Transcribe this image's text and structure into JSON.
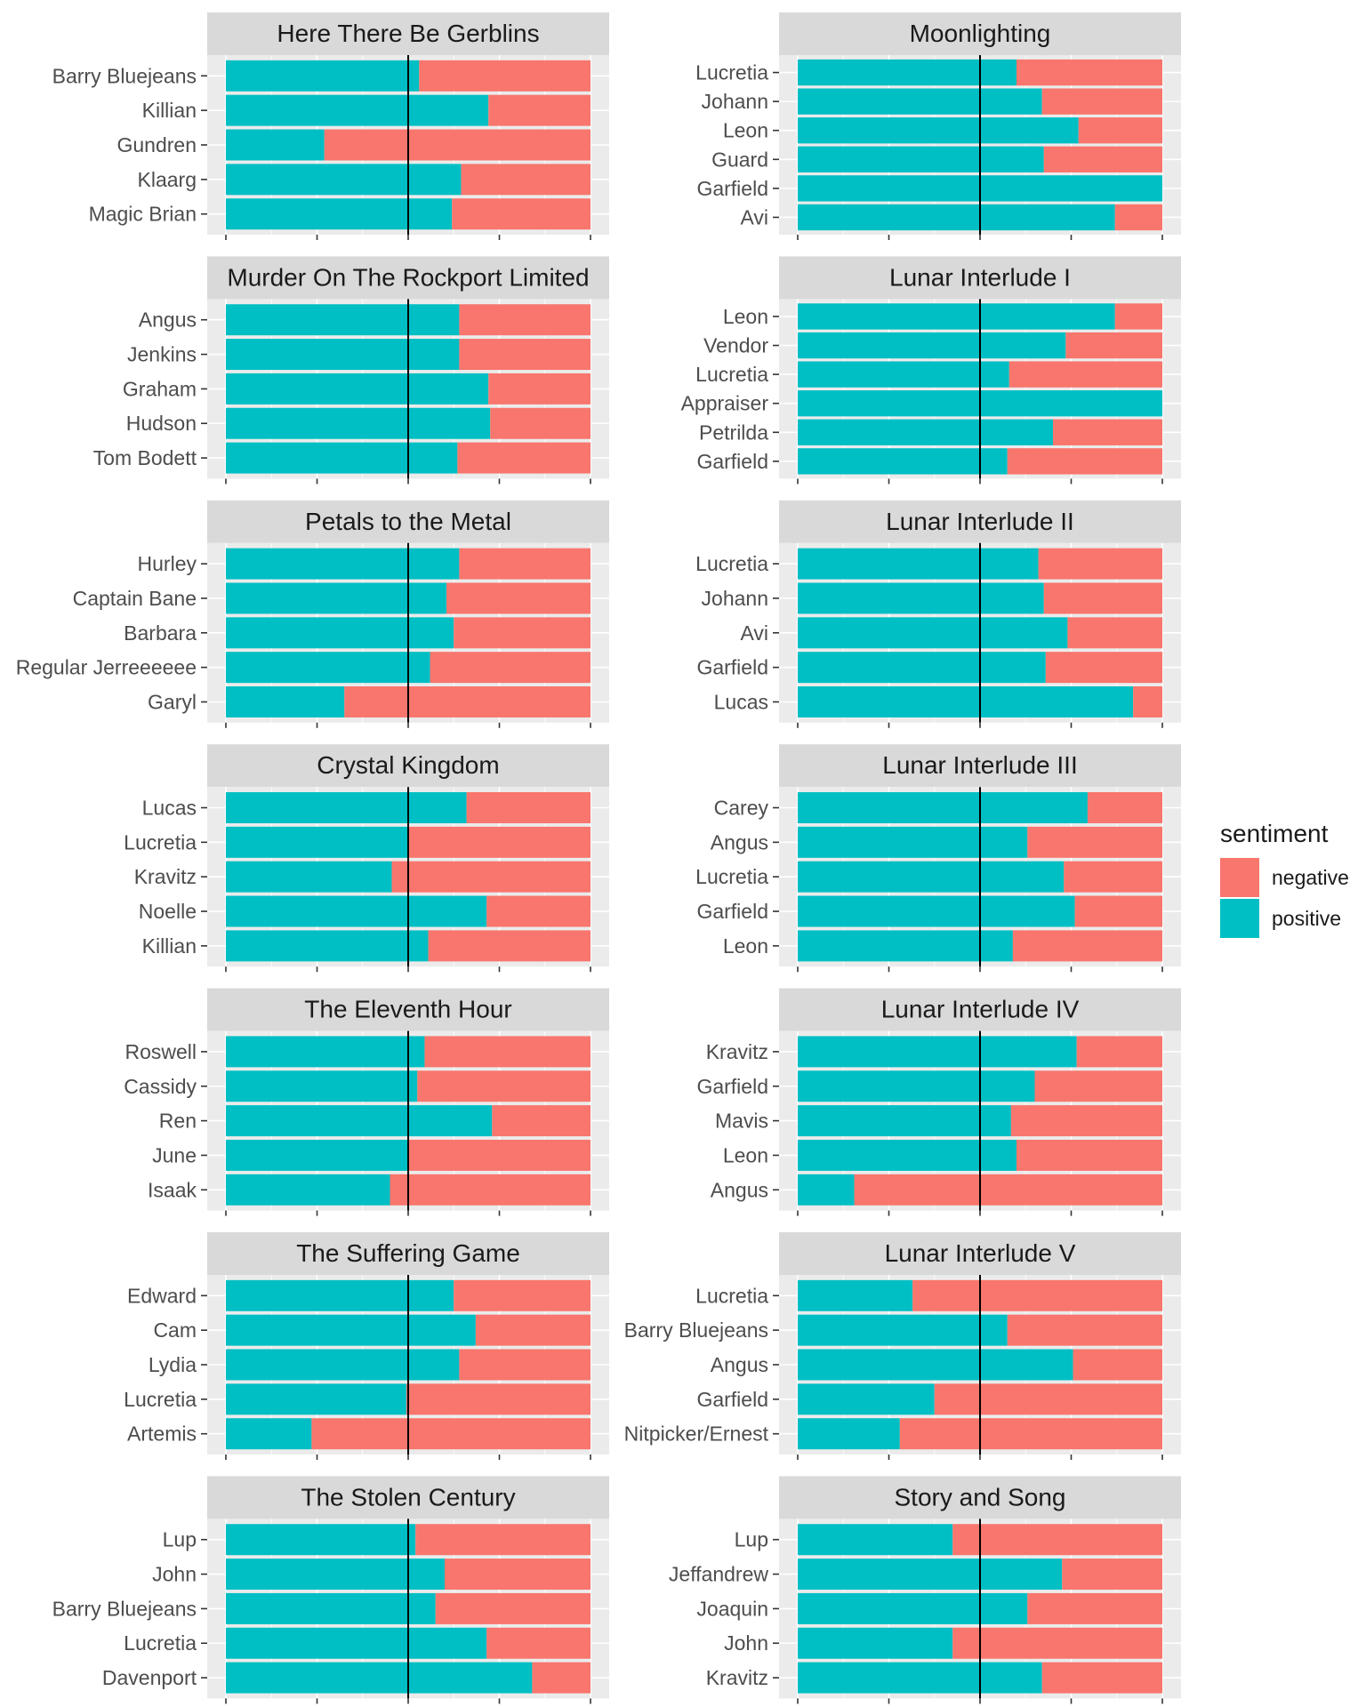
{
  "colors": {
    "negative": "#F8766D",
    "positive": "#00BFC4",
    "panel_bg": "#EBEBEB",
    "strip_bg": "#D9D9D9",
    "grid": "#FFFFFF",
    "reference_line": "#000000"
  },
  "chart_data": {
    "type": "bar",
    "orientation": "horizontal",
    "stacked": "fill",
    "xlim": [
      0,
      1
    ],
    "reference_line": 0.5,
    "legend": {
      "title": "sentiment",
      "position": "right",
      "entries": [
        {
          "key": "negative",
          "label": "negative"
        },
        {
          "key": "positive",
          "label": "positive"
        }
      ]
    },
    "panels": [
      {
        "title": "Here There Be Gerblins",
        "characters": [
          {
            "name": "Barry Bluejeans",
            "positive": 0.53
          },
          {
            "name": "Killian",
            "positive": 0.72
          },
          {
            "name": "Gundren",
            "positive": 0.27
          },
          {
            "name": "Klaarg",
            "positive": 0.645
          },
          {
            "name": "Magic Brian",
            "positive": 0.62
          }
        ]
      },
      {
        "title": "Moonlighting",
        "characters": [
          {
            "name": "Lucretia",
            "positive": 0.6
          },
          {
            "name": "Johann",
            "positive": 0.67
          },
          {
            "name": "Leon",
            "positive": 0.77
          },
          {
            "name": "Guard",
            "positive": 0.675
          },
          {
            "name": "Garfield",
            "positive": 1.0
          },
          {
            "name": "Avi",
            "positive": 0.87
          }
        ]
      },
      {
        "title": "Murder On The Rockport Limited",
        "characters": [
          {
            "name": "Angus",
            "positive": 0.64
          },
          {
            "name": "Jenkins",
            "positive": 0.64
          },
          {
            "name": "Graham",
            "positive": 0.72
          },
          {
            "name": "Hudson",
            "positive": 0.725
          },
          {
            "name": "Tom Bodett",
            "positive": 0.635
          }
        ]
      },
      {
        "title": "Lunar Interlude I",
        "characters": [
          {
            "name": "Leon",
            "positive": 0.87
          },
          {
            "name": "Vendor",
            "positive": 0.735
          },
          {
            "name": "Lucretia",
            "positive": 0.58
          },
          {
            "name": "Appraiser",
            "positive": 1.0
          },
          {
            "name": "Petrilda",
            "positive": 0.7
          },
          {
            "name": "Garfield",
            "positive": 0.575
          }
        ]
      },
      {
        "title": "Petals to the Metal",
        "characters": [
          {
            "name": "Hurley",
            "positive": 0.64
          },
          {
            "name": "Captain Bane",
            "positive": 0.605
          },
          {
            "name": "Barbara",
            "positive": 0.625
          },
          {
            "name": "Regular Jerreeeeee",
            "positive": 0.56
          },
          {
            "name": "Garyl",
            "positive": 0.325
          }
        ]
      },
      {
        "title": "Lunar Interlude II",
        "characters": [
          {
            "name": "Lucretia",
            "positive": 0.66
          },
          {
            "name": "Johann",
            "positive": 0.675
          },
          {
            "name": "Avi",
            "positive": 0.74
          },
          {
            "name": "Garfield",
            "positive": 0.68
          },
          {
            "name": "Lucas",
            "positive": 0.92
          }
        ]
      },
      {
        "title": "Crystal Kingdom",
        "characters": [
          {
            "name": "Lucas",
            "positive": 0.66
          },
          {
            "name": "Lucretia",
            "positive": 0.5
          },
          {
            "name": "Kravitz",
            "positive": 0.455
          },
          {
            "name": "Noelle",
            "positive": 0.715
          },
          {
            "name": "Killian",
            "positive": 0.555
          }
        ]
      },
      {
        "title": "Lunar Interlude III",
        "characters": [
          {
            "name": "Carey",
            "positive": 0.795
          },
          {
            "name": "Angus",
            "positive": 0.63
          },
          {
            "name": "Lucretia",
            "positive": 0.73
          },
          {
            "name": "Garfield",
            "positive": 0.76
          },
          {
            "name": "Leon",
            "positive": 0.59
          }
        ]
      },
      {
        "title": "The Eleventh Hour",
        "characters": [
          {
            "name": "Roswell",
            "positive": 0.545
          },
          {
            "name": "Cassidy",
            "positive": 0.525
          },
          {
            "name": "Ren",
            "positive": 0.73
          },
          {
            "name": "June",
            "positive": 0.5
          },
          {
            "name": "Isaak",
            "positive": 0.45
          }
        ]
      },
      {
        "title": "Lunar Interlude IV",
        "characters": [
          {
            "name": "Kravitz",
            "positive": 0.765
          },
          {
            "name": "Garfield",
            "positive": 0.65
          },
          {
            "name": "Mavis",
            "positive": 0.585
          },
          {
            "name": "Leon",
            "positive": 0.6
          },
          {
            "name": "Angus",
            "positive": 0.155
          }
        ]
      },
      {
        "title": "The Suffering Game",
        "characters": [
          {
            "name": "Edward",
            "positive": 0.625
          },
          {
            "name": "Cam",
            "positive": 0.685
          },
          {
            "name": "Lydia",
            "positive": 0.64
          },
          {
            "name": "Lucretia",
            "positive": 0.495
          },
          {
            "name": "Artemis",
            "positive": 0.235
          }
        ]
      },
      {
        "title": "Lunar Interlude V",
        "characters": [
          {
            "name": "Lucretia",
            "positive": 0.315
          },
          {
            "name": "Barry Bluejeans",
            "positive": 0.575
          },
          {
            "name": "Angus",
            "positive": 0.755
          },
          {
            "name": "Garfield",
            "positive": 0.375
          },
          {
            "name": "Nitpicker/Ernest",
            "positive": 0.28
          }
        ]
      },
      {
        "title": "The Stolen Century",
        "characters": [
          {
            "name": "Lup",
            "positive": 0.52
          },
          {
            "name": "John",
            "positive": 0.6
          },
          {
            "name": "Barry Bluejeans",
            "positive": 0.575
          },
          {
            "name": "Lucretia",
            "positive": 0.715
          },
          {
            "name": "Davenport",
            "positive": 0.84
          }
        ]
      },
      {
        "title": "Story and Song",
        "characters": [
          {
            "name": "Lup",
            "positive": 0.425
          },
          {
            "name": "Jeffandrew",
            "positive": 0.725
          },
          {
            "name": "Joaquin",
            "positive": 0.63
          },
          {
            "name": "John",
            "positive": 0.425
          },
          {
            "name": "Kravitz",
            "positive": 0.67
          }
        ]
      }
    ]
  }
}
